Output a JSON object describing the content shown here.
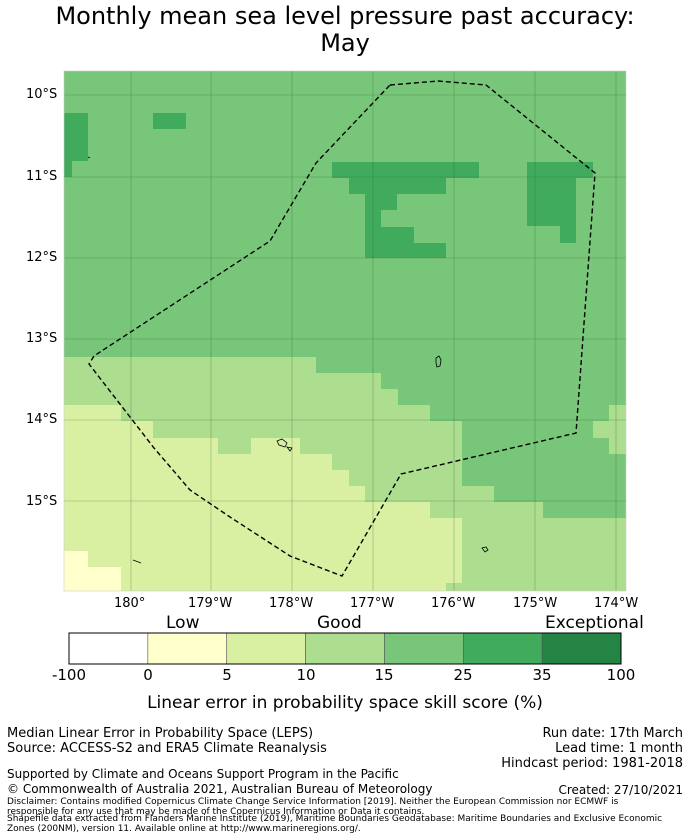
{
  "title_line1": "Monthly mean sea level pressure past accuracy:",
  "title_line2": "May",
  "lat_labels": [
    "10°S",
    "11°S",
    "12°S",
    "13°S",
    "14°S",
    "15°S"
  ],
  "lon_labels": [
    "180°",
    "179°W",
    "178°W",
    "177°W",
    "176°W",
    "175°W",
    "174°W"
  ],
  "colorbar": {
    "categories": [
      "Low",
      "Good",
      "Exceptional"
    ],
    "ticks": [
      "-100",
      "0",
      "5",
      "10",
      "15",
      "25",
      "35",
      "100"
    ],
    "colors": [
      "#ffffff",
      "#ffffcc",
      "#d9f0a3",
      "#addd8e",
      "#78c679",
      "#41ab5d",
      "#238443"
    ],
    "label": "Linear error in probability space skill score (%)"
  },
  "footer": {
    "left1": "Median Linear Error in Probability Space (LEPS)",
    "left2": "Source: ACCESS-S2 and ERA5 Climate Reanalysis",
    "right1": "Run date: 17th March",
    "right2": "Lead time: 1 month",
    "right3": "Hindcast period: 1981-2018",
    "support": "Supported by Climate and Oceans Support Program in the Pacific",
    "copyright": "© Commonwealth of Australia 2021, Australian Bureau of Meteorology",
    "created": "Created: 27/10/2021",
    "disclaimer1": "Disclaimer: Contains modified Copernicus Climate Change Service Information [2019]. Neither the European Commission nor ECMWF is",
    "disclaimer2": "responsible for any use that may be made of the Copernicus Information or Data it contains.",
    "disclaimer3": "Shapefile data extracted from Flanders Marine Institute (2019), Maritime Boundaries Geodatabase: Maritime Boundaries and Exclusive Economic",
    "disclaimer4": "Zones (200NM), version 11. Available online at http://www.marineregions.org/."
  }
}
